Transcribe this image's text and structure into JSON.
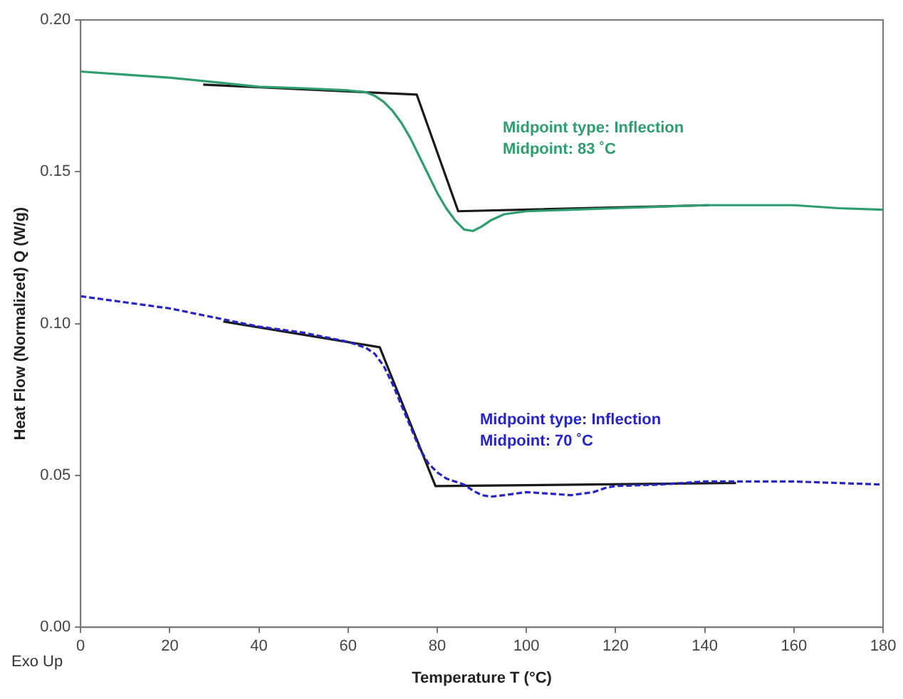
{
  "chart_data": {
    "type": "line",
    "xlabel": "Temperature T (°C)",
    "ylabel": "Heat Flow (Normalized) Q (W/g)",
    "xlim": [
      0,
      180
    ],
    "xticks": [
      0,
      20,
      40,
      60,
      80,
      100,
      120,
      140,
      160,
      180
    ],
    "ylim": [
      0,
      0.2
    ],
    "yticks": [
      {
        "value": 0,
        "label": "0.00"
      },
      {
        "value": 0.05,
        "label": "0.05"
      },
      {
        "value": 0.1,
        "label": "0.10"
      },
      {
        "value": 0.15,
        "label": "0.15"
      },
      {
        "value": 0.2,
        "label": "0.20"
      }
    ],
    "grid": false,
    "legend": false,
    "marker": "none",
    "annotations": [
      "Midpoint type: Inflection\nMidpoint: 83 ˚C",
      "Midpoint type: Inflection\nMidpoint: 70 ˚C",
      "Exo Up"
    ],
    "series": [
      {
        "color": "#2e9e6e",
        "line_style": "solid",
        "x": [
          0,
          10,
          20,
          30,
          40,
          50,
          60,
          64,
          66,
          68,
          70,
          72,
          74,
          76,
          78,
          80,
          82,
          84,
          86,
          88,
          90,
          92,
          95,
          100,
          110,
          120,
          130,
          140,
          150,
          160,
          170,
          180
        ],
        "values": [
          0.183,
          0.182,
          0.181,
          0.1795,
          0.178,
          0.1775,
          0.1768,
          0.1762,
          0.175,
          0.173,
          0.17,
          0.166,
          0.161,
          0.155,
          0.149,
          0.143,
          0.138,
          0.134,
          0.131,
          0.1305,
          0.132,
          0.134,
          0.136,
          0.137,
          0.1375,
          0.138,
          0.1385,
          0.139,
          0.139,
          0.139,
          0.138,
          0.1375
        ]
      },
      {
        "color": "#1a1a1a",
        "line_style": "solid",
        "x": [
          27.5,
          75.4,
          84.7,
          141
        ],
        "values": [
          0.1787,
          0.1754,
          0.137,
          0.139
        ]
      },
      {
        "color": "#2424c8",
        "line_style": "dashed",
        "x": [
          0,
          10,
          20,
          30,
          40,
          50,
          60,
          64,
          66,
          68,
          70,
          72,
          74,
          76,
          78,
          80,
          82,
          84,
          86,
          88,
          90,
          92,
          95,
          100,
          105,
          110,
          115,
          118,
          120,
          130,
          140,
          150,
          160,
          170,
          180
        ],
        "values": [
          0.109,
          0.107,
          0.105,
          0.102,
          0.099,
          0.097,
          0.094,
          0.092,
          0.09,
          0.086,
          0.08,
          0.073,
          0.066,
          0.059,
          0.054,
          0.051,
          0.049,
          0.048,
          0.047,
          0.045,
          0.0435,
          0.043,
          0.0435,
          0.0445,
          0.044,
          0.0435,
          0.0445,
          0.046,
          0.0465,
          0.047,
          0.048,
          0.048,
          0.048,
          0.0475,
          0.047
        ]
      },
      {
        "color": "#1a1a1a",
        "line_style": "solid",
        "x": [
          32,
          67.1,
          79.6,
          147
        ],
        "values": [
          0.1007,
          0.0922,
          0.0465,
          0.0475
        ]
      }
    ]
  }
}
